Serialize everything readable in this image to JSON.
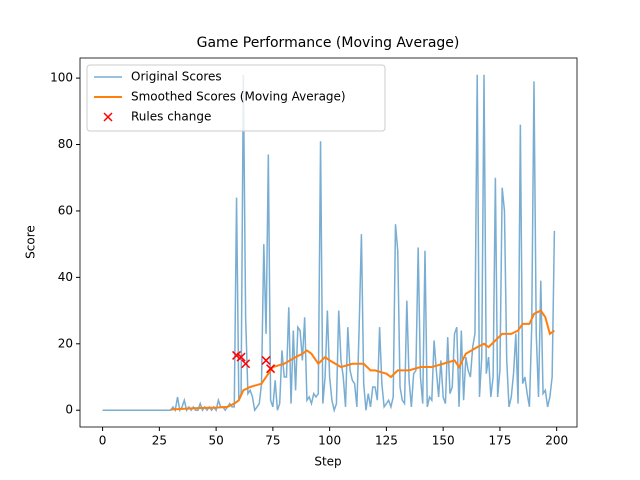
{
  "chart_data": {
    "type": "line",
    "title": "Game Performance (Moving Average)",
    "xlabel": "Step",
    "ylabel": "Score",
    "xlim": [
      -9.95,
      208.95
    ],
    "ylim": [
      -5.05,
      106.05
    ],
    "xticks": [
      0,
      25,
      50,
      75,
      100,
      125,
      150,
      175,
      200
    ],
    "yticks": [
      0,
      20,
      40,
      60,
      80,
      100
    ],
    "legend": "upper left",
    "series": [
      {
        "name": "Original Scores",
        "type": "line",
        "color": "#1f77b4",
        "x": [
          0,
          1,
          2,
          3,
          4,
          5,
          6,
          7,
          8,
          9,
          10,
          11,
          12,
          13,
          14,
          15,
          16,
          17,
          18,
          19,
          20,
          21,
          22,
          23,
          24,
          25,
          26,
          27,
          28,
          29,
          30,
          31,
          32,
          33,
          34,
          35,
          36,
          37,
          38,
          39,
          40,
          41,
          42,
          43,
          44,
          45,
          46,
          47,
          48,
          49,
          50,
          51,
          52,
          53,
          54,
          55,
          56,
          57,
          58,
          59,
          60,
          61,
          62,
          63,
          64,
          65,
          66,
          67,
          68,
          69,
          70,
          71,
          72,
          73,
          74,
          75,
          76,
          77,
          78,
          79,
          80,
          81,
          82,
          83,
          84,
          85,
          86,
          87,
          88,
          89,
          90,
          91,
          92,
          93,
          94,
          95,
          96,
          97,
          98,
          99,
          100,
          101,
          102,
          103,
          104,
          105,
          106,
          107,
          108,
          109,
          110,
          111,
          112,
          113,
          114,
          115,
          116,
          117,
          118,
          119,
          120,
          121,
          122,
          123,
          124,
          125,
          126,
          127,
          128,
          129,
          130,
          131,
          132,
          133,
          134,
          135,
          136,
          137,
          138,
          139,
          140,
          141,
          142,
          143,
          144,
          145,
          146,
          147,
          148,
          149,
          150,
          151,
          152,
          153,
          154,
          155,
          156,
          157,
          158,
          159,
          160,
          161,
          162,
          163,
          164,
          165,
          166,
          167,
          168,
          169,
          170,
          171,
          172,
          173,
          174,
          175,
          176,
          177,
          178,
          179,
          180,
          181,
          182,
          183,
          184,
          185,
          186,
          187,
          188,
          189,
          190,
          191,
          192,
          193,
          194,
          195,
          196,
          197,
          198,
          199
        ],
        "values": [
          0,
          0,
          0,
          0,
          0,
          0,
          0,
          0,
          0,
          0,
          0,
          0,
          0,
          0,
          0,
          0,
          0,
          0,
          0,
          0,
          0,
          0,
          0,
          0,
          0,
          0,
          0,
          0,
          0,
          0,
          0,
          1,
          0,
          4,
          0,
          1,
          3,
          0,
          1,
          0,
          1,
          0,
          0,
          2,
          0,
          1,
          0,
          1,
          0,
          1,
          0,
          3,
          1,
          1,
          0,
          1,
          2,
          1,
          1,
          64,
          3,
          5,
          101,
          28,
          5,
          6,
          4,
          0,
          1,
          2,
          8,
          50,
          23,
          77,
          3,
          1,
          9,
          0,
          2,
          18,
          10,
          10,
          31,
          2,
          24,
          6,
          25,
          24,
          15,
          28,
          3,
          4,
          2,
          5,
          4,
          5,
          81,
          2,
          10,
          30,
          10,
          3,
          0,
          2,
          30,
          15,
          10,
          1,
          25,
          12,
          9,
          8,
          1,
          25,
          53,
          8,
          0,
          5,
          1,
          7,
          7,
          3,
          25,
          8,
          1,
          2,
          3,
          1,
          4,
          56,
          48,
          7,
          3,
          2,
          33,
          9,
          1,
          11,
          12,
          49,
          10,
          2,
          48,
          1,
          4,
          3,
          21,
          12,
          4,
          15,
          4,
          2,
          22,
          5,
          7,
          23,
          25,
          1,
          24,
          3,
          16,
          12,
          10,
          19,
          23,
          101,
          4,
          16,
          101,
          11,
          16,
          4,
          10,
          70,
          4,
          12,
          67,
          60,
          15,
          1,
          4,
          11,
          23,
          2,
          86,
          8,
          10,
          5,
          1,
          25,
          99,
          23,
          4,
          39,
          5,
          6,
          1,
          4,
          10,
          54
        ]
      },
      {
        "name": "Smoothed Scores (Moving Average)",
        "type": "line",
        "color": "#ff7f0e",
        "x": [
          30,
          35,
          40,
          45,
          50,
          55,
          58,
          60,
          62,
          65,
          70,
          73,
          75,
          80,
          85,
          88,
          90,
          92,
          95,
          98,
          100,
          105,
          110,
          115,
          118,
          120,
          125,
          127,
          130,
          135,
          140,
          145,
          150,
          155,
          157,
          160,
          165,
          168,
          170,
          173,
          176,
          180,
          183,
          185,
          188,
          190,
          193,
          195,
          197,
          199
        ],
        "values": [
          0.2,
          0.4,
          0.6,
          0.7,
          0.8,
          1,
          2,
          3,
          6,
          7,
          8,
          11,
          13,
          14,
          16,
          17,
          18,
          17,
          14,
          16,
          15,
          13,
          14,
          14,
          12,
          12,
          11,
          10,
          12,
          12,
          13,
          13,
          14,
          15,
          13,
          17,
          19,
          20,
          19,
          21,
          23,
          23,
          24,
          26,
          26,
          29,
          30,
          28,
          23,
          24
        ]
      },
      {
        "name": "Rules change",
        "type": "scatter",
        "color": "red",
        "x": [
          59,
          61,
          63,
          72,
          74
        ],
        "values": [
          16.5,
          16,
          14,
          15,
          12.5
        ]
      }
    ]
  }
}
